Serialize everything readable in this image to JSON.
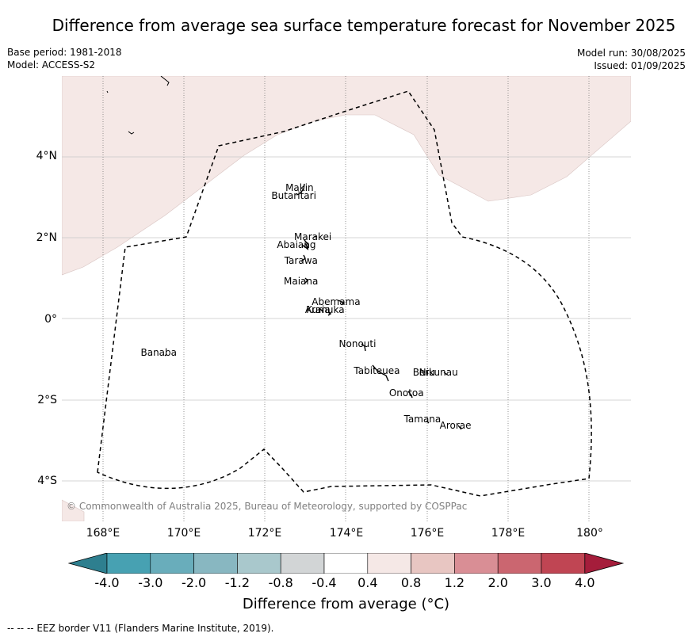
{
  "title": "Difference from average sea surface temperature forecast for November 2025",
  "base_period": "Base period: 1981-2018",
  "model": "Model: ACCESS-S2",
  "model_run": "Model run: 30/08/2025",
  "issued": "Issued: 01/09/2025",
  "copyright": "© Commonwealth of Australia 2025, Bureau of Meteorology, supported by COSPPac",
  "footnote": "--  --  -- EEZ border V11 (Flanders Marine Institute, 2019).",
  "colorbar": {
    "title": "Difference from average (°C)",
    "labels": [
      "-4.0",
      "-3.0",
      "-2.0",
      "-1.2",
      "-0.8",
      "-0.4",
      "0.4",
      "0.8",
      "1.2",
      "2.0",
      "3.0",
      "4.0"
    ],
    "colors": [
      "#2e7f8f",
      "#47a1b2",
      "#69adbb",
      "#88b7c1",
      "#a9c8cc",
      "#d2d5d6",
      "#ffffff",
      "#f5e8e6",
      "#e8c6c2",
      "#d98e95",
      "#cb6670",
      "#c04553",
      "#a51d3b"
    ]
  },
  "axes": {
    "lat_labels": [
      "4°N",
      "2°N",
      "0°",
      "2°S",
      "4°S"
    ],
    "lon_labels": [
      "168°E",
      "170°E",
      "172°E",
      "174°E",
      "176°E",
      "178°E",
      "180°"
    ]
  },
  "fill_color": "#f5e8e6",
  "places": [
    {
      "name": "Makin",
      "lon": 172.95,
      "lat": 3.2
    },
    {
      "name": "Butaritari",
      "lon": 172.85,
      "lat": 3.0
    },
    {
      "name": "Marakei",
      "lon": 173.3,
      "lat": 2.0
    },
    {
      "name": "Abaiang",
      "lon": 172.9,
      "lat": 1.8
    },
    {
      "name": "Tarawa",
      "lon": 173.0,
      "lat": 1.4
    },
    {
      "name": "Maiana",
      "lon": 173.0,
      "lat": 0.9
    },
    {
      "name": "Abemama",
      "lon": 173.9,
      "lat": 0.4
    },
    {
      "name": "Kuria",
      "lon": 173.4,
      "lat": 0.2
    },
    {
      "name": "Aranuka",
      "lon": 173.6,
      "lat": 0.2
    },
    {
      "name": "Banaba",
      "lon": 169.5,
      "lat": -0.85
    },
    {
      "name": "Nonouti",
      "lon": 174.4,
      "lat": -0.65
    },
    {
      "name": "Tabiteuea",
      "lon": 174.9,
      "lat": -1.3
    },
    {
      "name": "Beru",
      "lon": 176.0,
      "lat": -1.35
    },
    {
      "name": "Nikunau",
      "lon": 176.4,
      "lat": -1.35
    },
    {
      "name": "Onotoa",
      "lon": 175.6,
      "lat": -1.85
    },
    {
      "name": "Tamana",
      "lon": 176.0,
      "lat": -2.5
    },
    {
      "name": "Arorae",
      "lon": 176.8,
      "lat": -2.65
    }
  ]
}
